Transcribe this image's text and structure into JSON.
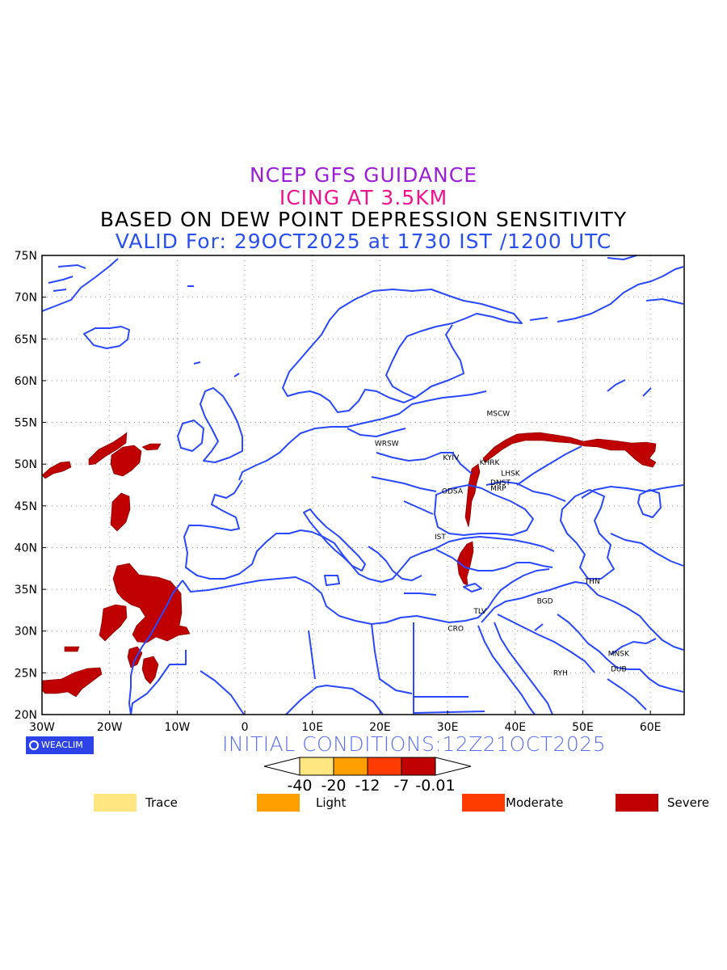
{
  "titles": {
    "line1": "NCEP GFS GUIDANCE",
    "line2": "ICING AT 3.5KM",
    "line3": "BASED ON DEW POINT DEPRESSION SENSITIVITY",
    "line4": "VALID For: 29OCT2025 at 1730 IST /1200 UTC"
  },
  "title_colors": {
    "line1": "#9b1fd6",
    "line2": "#f0128c",
    "line3": "#000000",
    "line4": "#2a4ff0"
  },
  "map": {
    "lon_range": [
      -30,
      65
    ],
    "lat_range": [
      20,
      75
    ],
    "lat_ticks": [
      "75N",
      "70N",
      "65N",
      "60N",
      "55N",
      "50N",
      "45N",
      "40N",
      "35N",
      "30N",
      "25N",
      "20N"
    ],
    "lon_ticks": [
      "30W",
      "20W",
      "10W",
      "0",
      "10E",
      "20E",
      "30E",
      "40E",
      "50E",
      "60E"
    ],
    "grid": "dotted",
    "boundary_color": "#2a48ff",
    "icing_color": "#c00000"
  },
  "cities": [
    {
      "name": "MSCW",
      "lon": 37.5,
      "lat": 55.8
    },
    {
      "name": "WRSW",
      "lon": 21.0,
      "lat": 52.2
    },
    {
      "name": "KYIV",
      "lon": 30.5,
      "lat": 50.5
    },
    {
      "name": "KHRK",
      "lon": 36.2,
      "lat": 49.9
    },
    {
      "name": "LHSK",
      "lon": 39.3,
      "lat": 48.6
    },
    {
      "name": "DNST",
      "lon": 37.8,
      "lat": 47.5
    },
    {
      "name": "MRP",
      "lon": 37.5,
      "lat": 46.8
    },
    {
      "name": "ODSA",
      "lon": 30.7,
      "lat": 46.5
    },
    {
      "name": "IST",
      "lon": 28.9,
      "lat": 41.0
    },
    {
      "name": "THN",
      "lon": 51.4,
      "lat": 35.7
    },
    {
      "name": "BGD",
      "lon": 44.4,
      "lat": 33.3
    },
    {
      "name": "TLV",
      "lon": 34.8,
      "lat": 32.1
    },
    {
      "name": "CRO",
      "lon": 31.2,
      "lat": 30.0
    },
    {
      "name": "MNSK",
      "lon": 55.3,
      "lat": 27.0
    },
    {
      "name": "DUB",
      "lon": 55.3,
      "lat": 25.2
    },
    {
      "name": "RYH",
      "lon": 46.7,
      "lat": 24.7
    }
  ],
  "init_conditions": "INITIAL CONDITIONS:12Z21OCT2025",
  "logo_text": "WEACLIM",
  "colorbar": {
    "ticks": [
      "-40",
      "-20",
      "-12",
      "-7",
      "-0.01"
    ],
    "colors": [
      "#ffe680",
      "#ffa000",
      "#ff3c00",
      "#c00000"
    ]
  },
  "legend": [
    {
      "label": "Trace",
      "color": "#ffe680"
    },
    {
      "label": "Light",
      "color": "#ffa000"
    },
    {
      "label": "Moderate",
      "color": "#ff3c00"
    },
    {
      "label": "Severe",
      "color": "#c00000"
    }
  ]
}
